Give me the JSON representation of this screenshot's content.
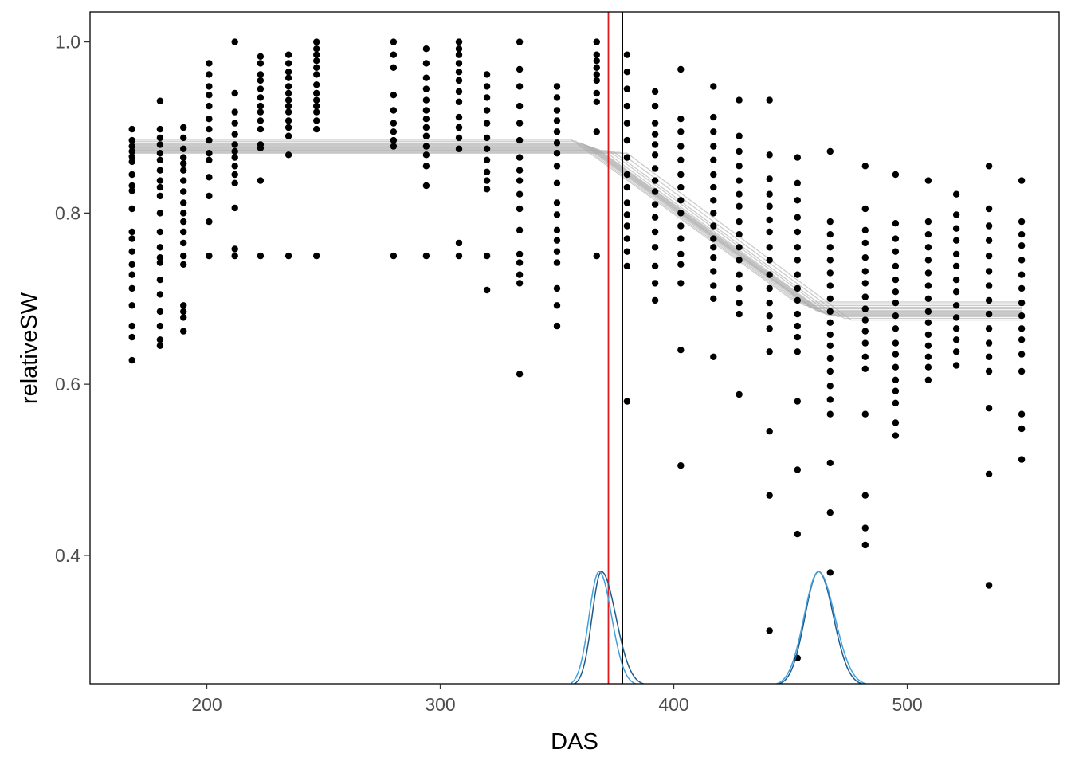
{
  "chart_data": {
    "type": "scatter",
    "xlabel": "DAS",
    "ylabel": "relativeSW",
    "xlim": [
      150,
      565
    ],
    "ylim": [
      0.25,
      1.035
    ],
    "x_ticks": [
      200,
      300,
      400,
      500
    ],
    "y_ticks": [
      0.4,
      0.6,
      0.8,
      1.0
    ],
    "y_tick_labels": [
      "0.4",
      "0.6",
      "0.8",
      "1.0"
    ],
    "grid": false,
    "colors": {
      "points": "#000000",
      "fit_lines": "#aaaaaa",
      "vline_red": "#e31a1c",
      "vline_black": "#000000",
      "density_a": "#1f5a8a",
      "density_b": "#3fa0dc"
    },
    "vlines": [
      {
        "x": 372,
        "color": "red"
      },
      {
        "x": 378,
        "color": "black"
      }
    ],
    "points": [
      {
        "x": 168,
        "y": [
          0.898,
          0.885,
          0.878,
          0.872,
          0.866,
          0.86,
          0.845,
          0.832,
          0.826,
          0.805,
          0.778,
          0.77,
          0.755,
          0.74,
          0.728,
          0.712,
          0.692,
          0.668,
          0.655,
          0.628
        ]
      },
      {
        "x": 180,
        "y": [
          0.931,
          0.898,
          0.888,
          0.88,
          0.87,
          0.862,
          0.85,
          0.838,
          0.83,
          0.82,
          0.8,
          0.778,
          0.76,
          0.748,
          0.742,
          0.722,
          0.705,
          0.685,
          0.668,
          0.652,
          0.645
        ]
      },
      {
        "x": 190,
        "y": [
          0.9,
          0.888,
          0.875,
          0.865,
          0.858,
          0.85,
          0.838,
          0.825,
          0.812,
          0.8,
          0.79,
          0.778,
          0.765,
          0.75,
          0.74,
          0.692,
          0.685,
          0.678,
          0.662
        ]
      },
      {
        "x": 201,
        "y": [
          0.975,
          0.962,
          0.948,
          0.938,
          0.925,
          0.91,
          0.898,
          0.885,
          0.87,
          0.862,
          0.842,
          0.82,
          0.79,
          0.75
        ]
      },
      {
        "x": 212,
        "y": [
          1.0,
          0.94,
          0.918,
          0.905,
          0.892,
          0.88,
          0.872,
          0.865,
          0.855,
          0.845,
          0.835,
          0.806,
          0.758,
          0.75
        ]
      },
      {
        "x": 223,
        "y": [
          0.983,
          0.975,
          0.962,
          0.955,
          0.945,
          0.935,
          0.925,
          0.918,
          0.908,
          0.898,
          0.88,
          0.876,
          0.838,
          0.75
        ]
      },
      {
        "x": 235,
        "y": [
          0.985,
          0.975,
          0.965,
          0.958,
          0.948,
          0.94,
          0.932,
          0.925,
          0.918,
          0.908,
          0.9,
          0.89,
          0.868,
          0.75
        ]
      },
      {
        "x": 247,
        "y": [
          1.0,
          0.992,
          0.985,
          0.978,
          0.97,
          0.962,
          0.95,
          0.94,
          0.932,
          0.925,
          0.918,
          0.908,
          0.898,
          0.75
        ]
      },
      {
        "x": 280,
        "y": [
          1.0,
          0.985,
          0.97,
          0.938,
          0.92,
          0.905,
          0.895,
          0.885,
          0.878,
          0.75
        ]
      },
      {
        "x": 294,
        "y": [
          0.992,
          0.975,
          0.958,
          0.945,
          0.932,
          0.92,
          0.91,
          0.9,
          0.89,
          0.878,
          0.868,
          0.855,
          0.832,
          0.75
        ]
      },
      {
        "x": 308,
        "y": [
          1.0,
          0.992,
          0.985,
          0.975,
          0.965,
          0.955,
          0.942,
          0.93,
          0.912,
          0.9,
          0.888,
          0.875,
          0.765,
          0.75
        ]
      },
      {
        "x": 320,
        "y": [
          0.962,
          0.948,
          0.935,
          0.92,
          0.905,
          0.888,
          0.875,
          0.862,
          0.848,
          0.838,
          0.828,
          0.75,
          0.71
        ]
      },
      {
        "x": 334,
        "y": [
          1.0,
          0.968,
          0.948,
          0.925,
          0.905,
          0.885,
          0.865,
          0.85,
          0.838,
          0.822,
          0.805,
          0.78,
          0.752,
          0.742,
          0.728,
          0.718,
          0.612
        ]
      },
      {
        "x": 350,
        "y": [
          0.948,
          0.935,
          0.92,
          0.908,
          0.895,
          0.882,
          0.87,
          0.855,
          0.835,
          0.812,
          0.798,
          0.78,
          0.768,
          0.755,
          0.742,
          0.712,
          0.692,
          0.668
        ]
      },
      {
        "x": 367,
        "y": [
          1.0,
          0.985,
          0.978,
          0.97,
          0.962,
          0.955,
          0.94,
          0.93,
          0.895,
          0.75
        ]
      },
      {
        "x": 380,
        "y": [
          0.985,
          0.965,
          0.945,
          0.925,
          0.905,
          0.885,
          0.865,
          0.845,
          0.83,
          0.812,
          0.798,
          0.785,
          0.77,
          0.755,
          0.738,
          0.58
        ]
      },
      {
        "x": 392,
        "y": [
          0.942,
          0.925,
          0.905,
          0.892,
          0.88,
          0.868,
          0.852,
          0.838,
          0.825,
          0.81,
          0.795,
          0.778,
          0.76,
          0.738,
          0.718,
          0.698
        ]
      },
      {
        "x": 403,
        "y": [
          0.968,
          0.91,
          0.895,
          0.878,
          0.862,
          0.845,
          0.83,
          0.815,
          0.8,
          0.785,
          0.77,
          0.752,
          0.74,
          0.718,
          0.64,
          0.505
        ]
      },
      {
        "x": 417,
        "y": [
          0.948,
          0.912,
          0.895,
          0.878,
          0.862,
          0.845,
          0.83,
          0.815,
          0.8,
          0.785,
          0.77,
          0.76,
          0.748,
          0.732,
          0.715,
          0.7,
          0.632
        ]
      },
      {
        "x": 428,
        "y": [
          0.932,
          0.89,
          0.872,
          0.855,
          0.838,
          0.822,
          0.808,
          0.79,
          0.775,
          0.76,
          0.745,
          0.728,
          0.712,
          0.695,
          0.682,
          0.588
        ]
      },
      {
        "x": 441,
        "y": [
          0.932,
          0.868,
          0.84,
          0.822,
          0.808,
          0.792,
          0.778,
          0.76,
          0.745,
          0.728,
          0.712,
          0.695,
          0.68,
          0.665,
          0.638,
          0.545,
          0.47,
          0.312
        ]
      },
      {
        "x": 453,
        "y": [
          0.865,
          0.835,
          0.815,
          0.795,
          0.778,
          0.76,
          0.745,
          0.728,
          0.712,
          0.698,
          0.682,
          0.668,
          0.655,
          0.638,
          0.58,
          0.5,
          0.425,
          0.28
        ]
      },
      {
        "x": 467,
        "y": [
          0.872,
          0.79,
          0.775,
          0.76,
          0.745,
          0.73,
          0.715,
          0.7,
          0.685,
          0.672,
          0.658,
          0.645,
          0.63,
          0.615,
          0.598,
          0.582,
          0.565,
          0.508,
          0.45,
          0.38
        ]
      },
      {
        "x": 482,
        "y": [
          0.855,
          0.805,
          0.78,
          0.765,
          0.748,
          0.732,
          0.718,
          0.702,
          0.688,
          0.675,
          0.662,
          0.648,
          0.632,
          0.618,
          0.565,
          0.47,
          0.432,
          0.412
        ]
      },
      {
        "x": 495,
        "y": [
          0.845,
          0.788,
          0.77,
          0.755,
          0.738,
          0.722,
          0.708,
          0.695,
          0.68,
          0.665,
          0.648,
          0.635,
          0.62,
          0.605,
          0.592,
          0.578,
          0.555,
          0.54
        ]
      },
      {
        "x": 509,
        "y": [
          0.838,
          0.79,
          0.775,
          0.76,
          0.745,
          0.73,
          0.715,
          0.7,
          0.685,
          0.672,
          0.658,
          0.645,
          0.632,
          0.62,
          0.605
        ]
      },
      {
        "x": 521,
        "y": [
          0.822,
          0.798,
          0.782,
          0.768,
          0.752,
          0.738,
          0.722,
          0.708,
          0.692,
          0.678,
          0.665,
          0.652,
          0.638,
          0.622
        ]
      },
      {
        "x": 535,
        "y": [
          0.855,
          0.805,
          0.785,
          0.768,
          0.75,
          0.732,
          0.715,
          0.698,
          0.682,
          0.665,
          0.648,
          0.632,
          0.615,
          0.572,
          0.495,
          0.365
        ]
      },
      {
        "x": 549,
        "y": [
          0.838,
          0.79,
          0.775,
          0.762,
          0.745,
          0.728,
          0.712,
          0.695,
          0.68,
          0.665,
          0.652,
          0.635,
          0.615,
          0.565,
          0.548,
          0.512
        ]
      }
    ],
    "fit_lines": [
      {
        "upper": 0.886,
        "lower": 0.696,
        "start": 356,
        "end": 452
      },
      {
        "upper": 0.884,
        "lower": 0.694,
        "start": 358,
        "end": 454
      },
      {
        "upper": 0.882,
        "lower": 0.692,
        "start": 360,
        "end": 456
      },
      {
        "upper": 0.881,
        "lower": 0.69,
        "start": 361,
        "end": 458
      },
      {
        "upper": 0.88,
        "lower": 0.689,
        "start": 362,
        "end": 459
      },
      {
        "upper": 0.879,
        "lower": 0.688,
        "start": 363,
        "end": 460
      },
      {
        "upper": 0.878,
        "lower": 0.686,
        "start": 364,
        "end": 461
      },
      {
        "upper": 0.877,
        "lower": 0.685,
        "start": 365,
        "end": 462
      },
      {
        "upper": 0.876,
        "lower": 0.684,
        "start": 366,
        "end": 463
      },
      {
        "upper": 0.875,
        "lower": 0.683,
        "start": 367,
        "end": 464
      },
      {
        "upper": 0.874,
        "lower": 0.682,
        "start": 368,
        "end": 465
      },
      {
        "upper": 0.873,
        "lower": 0.681,
        "start": 370,
        "end": 466
      },
      {
        "upper": 0.873,
        "lower": 0.68,
        "start": 372,
        "end": 468
      },
      {
        "upper": 0.872,
        "lower": 0.679,
        "start": 374,
        "end": 470
      },
      {
        "upper": 0.871,
        "lower": 0.677,
        "start": 377,
        "end": 473
      },
      {
        "upper": 0.87,
        "lower": 0.675,
        "start": 380,
        "end": 476
      }
    ],
    "densities": [
      {
        "name": "density-a",
        "color": "#1f5a8a",
        "center": 369,
        "sigma_left": 4.0,
        "sigma_right": 6.2,
        "peak": 0.381,
        "base": 0.248,
        "from": 357,
        "to": 393
      },
      {
        "name": "density-b",
        "color": "#3fa0dc",
        "center": 368,
        "sigma_left": 4.3,
        "sigma_right": 5.4,
        "peak": 0.381,
        "base": 0.248,
        "from": 356,
        "to": 390
      },
      {
        "name": "density-c",
        "color": "#1f5a8a",
        "center": 462,
        "sigma_left": 5.8,
        "sigma_right": 6.4,
        "peak": 0.381,
        "base": 0.248,
        "from": 444,
        "to": 482
      },
      {
        "name": "density-d",
        "color": "#3fa0dc",
        "center": 462,
        "sigma_left": 6.2,
        "sigma_right": 7.0,
        "peak": 0.381,
        "base": 0.248,
        "from": 443,
        "to": 485
      }
    ]
  }
}
